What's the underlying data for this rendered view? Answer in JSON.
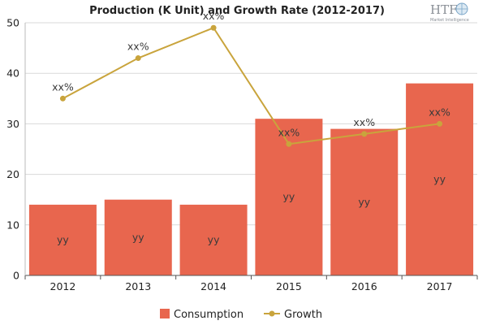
{
  "chart_data": {
    "type": "bar",
    "title": "Production (K Unit) and Growth Rate (2012-2017)",
    "categories": [
      "2012",
      "2013",
      "2014",
      "2015",
      "2016",
      "2017"
    ],
    "ylim": [
      0,
      50
    ],
    "yticks": [
      0,
      10,
      20,
      30,
      40,
      50
    ],
    "grid": true,
    "legend_position": "bottom-center",
    "series": [
      {
        "name": "Consumption",
        "type": "bar",
        "color": "#e8664e",
        "values": [
          14,
          15,
          14,
          31,
          29,
          38
        ],
        "labels": [
          "yy",
          "yy",
          "yy",
          "yy",
          "yy",
          "yy"
        ]
      },
      {
        "name": "Growth",
        "type": "line",
        "color": "#c9a43c",
        "values": [
          35,
          43,
          49,
          26,
          28,
          30
        ],
        "labels": [
          "xx%",
          "xx%",
          "xx%",
          "xx%",
          "xx%",
          "xx%"
        ]
      }
    ]
  },
  "logo": {
    "text": "HTF",
    "subtext": "Market Intelligence",
    "icon": "globe-icon"
  }
}
